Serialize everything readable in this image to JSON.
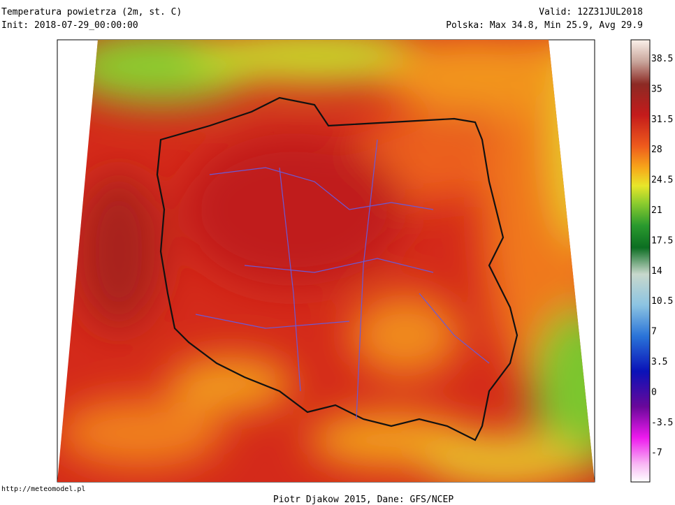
{
  "header": {
    "title": "Temperatura powietrza (2m, st. C)",
    "init": "Init: 2018-07-29_00:00:00",
    "valid": "Valid: 12Z31JUL2018",
    "stats": "Polska: Max 34.8, Min 25.9, Avg 29.9"
  },
  "colorbar": {
    "labels": [
      38.5,
      35,
      31.5,
      28,
      24.5,
      21,
      17.5,
      14,
      10.5,
      7,
      3.5,
      0,
      -3.5,
      -7
    ]
  },
  "footer": {
    "url": "http://meteomodel.pl",
    "credit": "Piotr Djakow 2015, Dane: GFS/NCEP"
  }
}
